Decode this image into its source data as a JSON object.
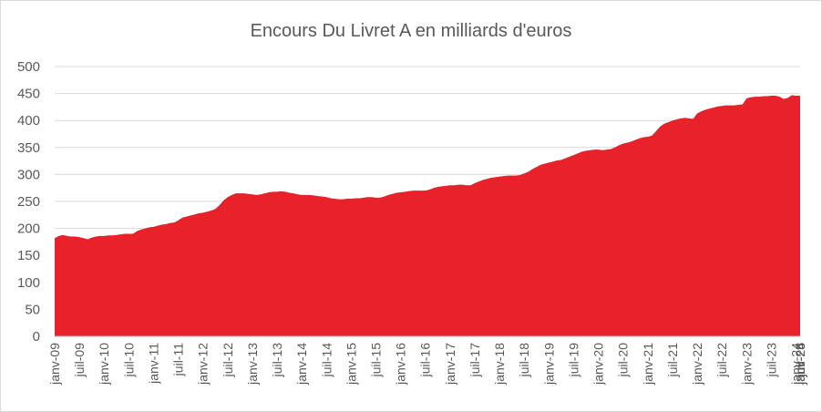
{
  "chart_data": {
    "type": "area",
    "title": "Encours Du Livret A en milliards d'euros",
    "xlabel": "",
    "ylabel": "",
    "ylim": [
      0,
      500
    ],
    "yticks": [
      0,
      50,
      100,
      150,
      200,
      250,
      300,
      350,
      400,
      450,
      500
    ],
    "grid": true,
    "color": "#e8212a",
    "x_labels": [
      "janv-09",
      "juil-09",
      "janv-10",
      "juil-10",
      "janv-11",
      "juil-11",
      "janv-12",
      "juil-12",
      "janv-13",
      "juil-13",
      "janv-14",
      "juil-14",
      "janv-15",
      "juil-15",
      "janv-16",
      "juil-16",
      "janv-17",
      "juil-17",
      "janv-18",
      "juil-18",
      "janv-19",
      "juil-19",
      "janv-20",
      "juil-20",
      "janv-21",
      "juil-21",
      "janv-22",
      "juil-22",
      "janv-23",
      "juil-23",
      "janv-24",
      "juil-24",
      "janv-25",
      "juil-25",
      "janv-26"
    ],
    "values": [
      182,
      186,
      188,
      186,
      185,
      185,
      184,
      182,
      180,
      183,
      185,
      186,
      186,
      187,
      187,
      188,
      189,
      190,
      190,
      190,
      195,
      198,
      200,
      202,
      203,
      205,
      207,
      208,
      210,
      211,
      215,
      220,
      222,
      224,
      226,
      228,
      229,
      231,
      233,
      236,
      243,
      252,
      258,
      262,
      265,
      265,
      265,
      264,
      263,
      262,
      263,
      265,
      267,
      268,
      268,
      269,
      268,
      266,
      265,
      263,
      262,
      262,
      262,
      261,
      260,
      259,
      258,
      256,
      255,
      254,
      254,
      255,
      255,
      256,
      256,
      257,
      258,
      258,
      257,
      257,
      259,
      262,
      264,
      266,
      267,
      268,
      269,
      270,
      270,
      270,
      270,
      272,
      275,
      277,
      278,
      279,
      280,
      280,
      281,
      281,
      280,
      280,
      284,
      287,
      290,
      292,
      294,
      295,
      296,
      297,
      298,
      298,
      298,
      299,
      302,
      305,
      310,
      314,
      318,
      320,
      322,
      324,
      326,
      327,
      330,
      333,
      336,
      339,
      342,
      344,
      345,
      346,
      346,
      345,
      346,
      347,
      350,
      354,
      357,
      359,
      361,
      364,
      367,
      369,
      370,
      372,
      380,
      389,
      394,
      397,
      400,
      402,
      404,
      405,
      404,
      403,
      413,
      417,
      420,
      422,
      424,
      426,
      427,
      428,
      428,
      428,
      429,
      430,
      441,
      443,
      444,
      444,
      445,
      445,
      446,
      446,
      444,
      440,
      442,
      447,
      446,
      446
    ]
  }
}
